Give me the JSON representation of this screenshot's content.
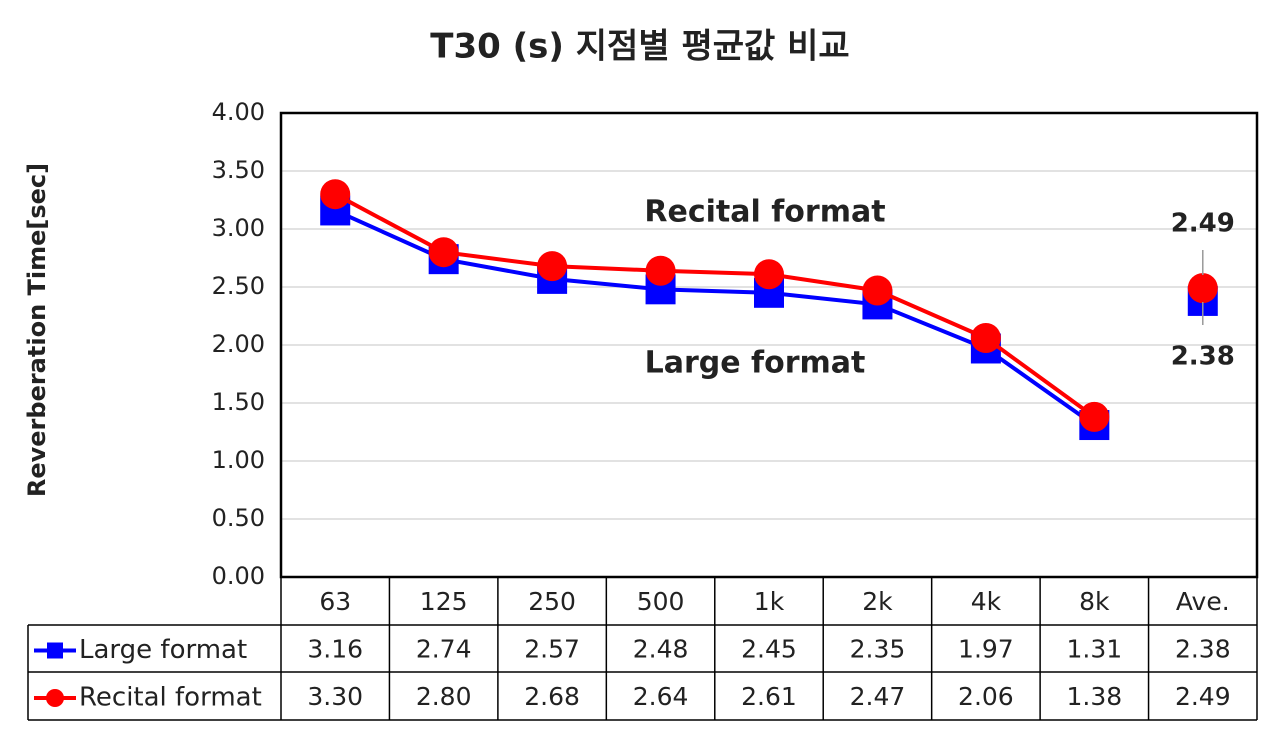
{
  "chart_data": {
    "type": "line",
    "title": "T30 (s) 지점별 평균값 비교",
    "y_label": "Reverberation Time[sec]",
    "categories": [
      "63",
      "125",
      "250",
      "500",
      "1k",
      "2k",
      "4k",
      "8k",
      "Ave."
    ],
    "series": [
      {
        "name": "Large format",
        "color": "#0000ff",
        "marker": "square",
        "values": [
          3.16,
          2.74,
          2.57,
          2.48,
          2.45,
          2.35,
          1.97,
          1.31,
          2.38
        ],
        "value_labels": [
          "3.16",
          "2.74",
          "2.57",
          "2.48",
          "2.45",
          "2.35",
          "1.97",
          "1.31",
          "2.38"
        ]
      },
      {
        "name": "Recital format",
        "color": "#ff0000",
        "marker": "circle",
        "values": [
          3.3,
          2.8,
          2.68,
          2.64,
          2.61,
          2.47,
          2.06,
          1.38,
          2.49
        ],
        "value_labels": [
          "3.30",
          "2.80",
          "2.68",
          "2.64",
          "2.61",
          "2.47",
          "2.06",
          "1.38",
          "2.49"
        ]
      }
    ],
    "ylim": [
      0,
      4
    ],
    "yticks": [
      {
        "value": 0,
        "label": "0.00"
      },
      {
        "value": 0.5,
        "label": "0.50"
      },
      {
        "value": 1,
        "label": "1.00"
      },
      {
        "value": 1.5,
        "label": "1.50"
      },
      {
        "value": 2,
        "label": "2.00"
      },
      {
        "value": 2.5,
        "label": "2.50"
      },
      {
        "value": 3,
        "label": "3.00"
      },
      {
        "value": 3.5,
        "label": "3.50"
      },
      {
        "value": 4,
        "label": "4.00"
      }
    ],
    "grid": true
  }
}
